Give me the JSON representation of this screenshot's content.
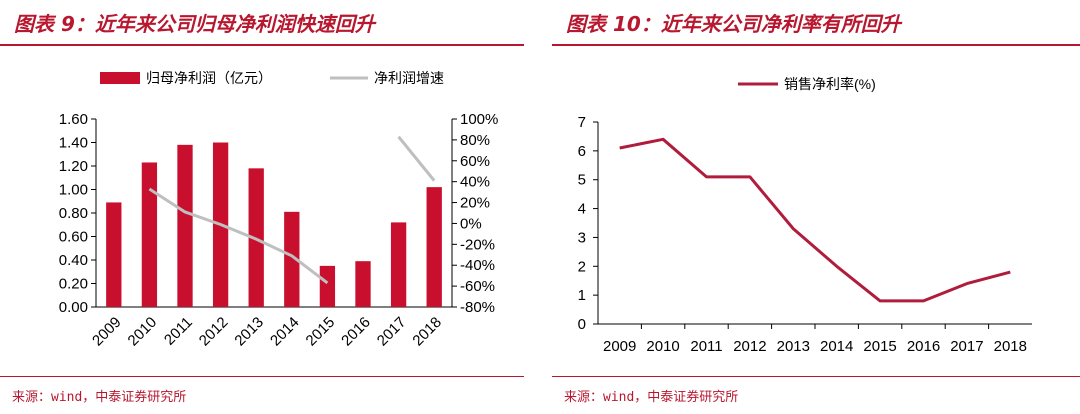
{
  "left": {
    "title": "图表 9：近年来公司归母净利润快速回升",
    "source": "来源：wind，中泰证券研究所",
    "chart_data": {
      "type": "bar",
      "categories": [
        "2009",
        "2010",
        "2011",
        "2012",
        "2013",
        "2014",
        "2015",
        "2016",
        "2017",
        "2018"
      ],
      "series": [
        {
          "name": "归母净利润（亿元）",
          "type": "bar",
          "axis": "left",
          "color": "#c8102e",
          "values": [
            0.89,
            1.23,
            1.38,
            1.4,
            1.18,
            0.81,
            0.35,
            0.39,
            0.72,
            1.02
          ]
        },
        {
          "name": "净利润增速",
          "type": "line",
          "axis": "right",
          "color": "#bfbfbf",
          "values": [
            null,
            33,
            11,
            -1,
            -15,
            -31,
            -57,
            null,
            83,
            41
          ]
        }
      ],
      "y_left": {
        "ylim": [
          0,
          1.6
        ],
        "ticks": [
          "1.60",
          "1.40",
          "1.20",
          "1.00",
          "0.80",
          "0.60",
          "0.40",
          "0.20",
          "0.00"
        ]
      },
      "y_right": {
        "ylim": [
          -80,
          100
        ],
        "ticks": [
          "100%",
          "80%",
          "60%",
          "40%",
          "20%",
          "0%",
          "-20%",
          "-40%",
          "-60%",
          "-80%"
        ]
      },
      "legend_position": "top"
    }
  },
  "right": {
    "title": "图表 10：近年来公司净利率有所回升",
    "source": "来源：wind，中泰证券研究所",
    "chart_data": {
      "type": "line",
      "categories": [
        "2009",
        "2010",
        "2011",
        "2012",
        "2013",
        "2014",
        "2015",
        "2016",
        "2017",
        "2018"
      ],
      "series": [
        {
          "name": "销售净利率(%)",
          "color": "#b01c3b",
          "values": [
            6.1,
            6.4,
            5.1,
            5.1,
            3.3,
            2.0,
            0.8,
            0.8,
            1.4,
            1.8
          ]
        }
      ],
      "y": {
        "ylim": [
          0,
          7
        ],
        "ticks": [
          "7",
          "6",
          "5",
          "4",
          "3",
          "2",
          "1",
          "0"
        ]
      },
      "legend_position": "top"
    }
  }
}
